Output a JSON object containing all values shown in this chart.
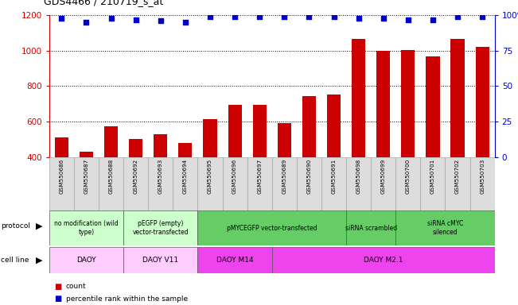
{
  "title": "GDS4466 / 210719_s_at",
  "samples": [
    "GSM550686",
    "GSM550687",
    "GSM550688",
    "GSM550692",
    "GSM550693",
    "GSM550694",
    "GSM550695",
    "GSM550696",
    "GSM550697",
    "GSM550689",
    "GSM550690",
    "GSM550691",
    "GSM550698",
    "GSM550699",
    "GSM550700",
    "GSM550701",
    "GSM550702",
    "GSM550703"
  ],
  "counts": [
    510,
    430,
    575,
    500,
    530,
    480,
    615,
    695,
    695,
    590,
    745,
    755,
    1065,
    1000,
    1005,
    970,
    1065,
    1020
  ],
  "percentile_ranks": [
    98,
    95,
    98,
    97,
    96,
    95,
    99,
    99,
    99,
    99,
    99,
    99,
    98,
    98,
    97,
    97,
    99,
    99
  ],
  "bar_color": "#cc0000",
  "dot_color": "#0000cc",
  "ylim_left": [
    400,
    1200
  ],
  "ylim_right": [
    0,
    100
  ],
  "yticks_left": [
    400,
    600,
    800,
    1000,
    1200
  ],
  "yticks_right": [
    0,
    25,
    50,
    75,
    100
  ],
  "protocol_groups": [
    {
      "label": "no modification (wild\ntype)",
      "start": 0,
      "end": 3,
      "color": "#ccffcc"
    },
    {
      "label": "pEGFP (empty)\nvector-transfected",
      "start": 3,
      "end": 6,
      "color": "#ccffcc"
    },
    {
      "label": "pMYCEGFP vector-transfected",
      "start": 6,
      "end": 12,
      "color": "#66cc66"
    },
    {
      "label": "siRNA scrambled",
      "start": 12,
      "end": 14,
      "color": "#66cc66"
    },
    {
      "label": "siRNA cMYC\nsilenced",
      "start": 14,
      "end": 18,
      "color": "#66cc66"
    }
  ],
  "cellline_groups": [
    {
      "label": "DAOY",
      "start": 0,
      "end": 3,
      "color": "#ffccff"
    },
    {
      "label": "DAOY V11",
      "start": 3,
      "end": 6,
      "color": "#ffccff"
    },
    {
      "label": "DAOY M14",
      "start": 6,
      "end": 9,
      "color": "#ee44ee"
    },
    {
      "label": "DAOY M2.1",
      "start": 9,
      "end": 18,
      "color": "#ee44ee"
    }
  ],
  "left_axis_color": "#cc0000",
  "right_axis_color": "#0000cc",
  "grid_color": "#000000",
  "chart_bg": "#ffffff",
  "sample_bg": "#dddddd"
}
